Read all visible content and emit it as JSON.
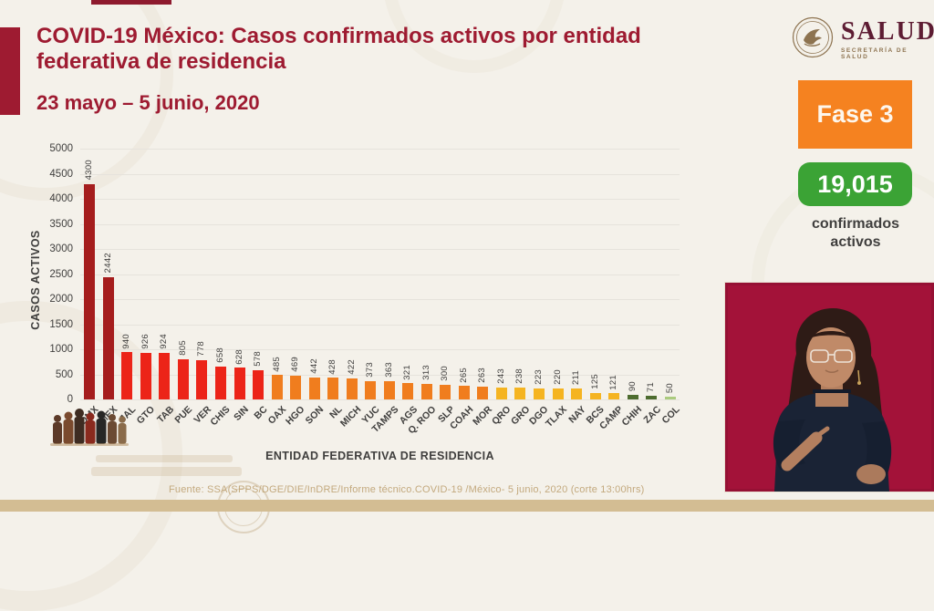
{
  "header": {
    "title": "COVID-19 México: Casos confirmados activos por entidad federativa de residencia",
    "date_range": "23 mayo – 5 junio, 2020"
  },
  "logo": {
    "name": "SALUD",
    "subtitle": "SECRETARÍA DE SALUD"
  },
  "status": {
    "phase_label": "Fase 3",
    "total_value": "19,015",
    "total_caption": "confirmados activos"
  },
  "chart_data": {
    "type": "bar",
    "title": "Casos confirmados activos por entidad federativa de residencia",
    "xlabel": "ENTIDAD FEDERATIVA DE  RESIDENCIA",
    "ylabel": "CASOS ACTIVOS",
    "ylim": [
      0,
      5000
    ],
    "ytick_interval": 500,
    "grid": true,
    "categories": [
      "CDMX",
      "MEX",
      "JAL",
      "GTO",
      "TAB",
      "PUE",
      "VER",
      "CHIS",
      "SIN",
      "BC",
      "OAX",
      "HGO",
      "SON",
      "NL",
      "MICH",
      "YUC",
      "TAMPS",
      "AGS",
      "Q. ROO",
      "SLP",
      "COAH",
      "MOR",
      "QRO",
      "GRO",
      "DGO",
      "TLAX",
      "NAY",
      "BCS",
      "CAMP",
      "CHIH",
      "ZAC",
      "COL"
    ],
    "values": [
      4300,
      2442,
      940,
      926,
      924,
      805,
      778,
      658,
      628,
      578,
      485,
      469,
      442,
      428,
      422,
      373,
      363,
      321,
      313,
      300,
      265,
      263,
      243,
      238,
      223,
      220,
      211,
      125,
      121,
      90,
      71,
      50
    ],
    "bar_colors": [
      "#A51D1D",
      "#A51D1D",
      "#EC2418",
      "#EC2418",
      "#EC2418",
      "#EC2418",
      "#EC2418",
      "#EC2418",
      "#EC2418",
      "#EC2418",
      "#F07D1E",
      "#F07D1E",
      "#F07D1E",
      "#F07D1E",
      "#F07D1E",
      "#F07D1E",
      "#F07D1E",
      "#F07D1E",
      "#F07D1E",
      "#F07D1E",
      "#F07D1E",
      "#F07D1E",
      "#F5B421",
      "#F5B421",
      "#F5B421",
      "#F5B421",
      "#F5B421",
      "#F5B421",
      "#F5B421",
      "#4D6C2F",
      "#4D6C2F",
      "#ABCB7E"
    ]
  },
  "footer": {
    "source": "Fuente: SSA(SPPS/DGE/DIE/InDRE/Informe técnico.COVID-19 /México- 5 junio, 2020 (corte 13:00hrs)"
  },
  "colors": {
    "accent": "#9E1B31",
    "title": "#9E1B31",
    "phase_badge_bg": "#F58220",
    "total_badge_bg": "#3BA335",
    "background": "#F4F1EA",
    "footer_bar": "#D3BD93",
    "video_background": "#A31239",
    "gridline": "#E6E3DC",
    "axis_text": "#3F3E3D",
    "source_text": "#C3A97E"
  }
}
